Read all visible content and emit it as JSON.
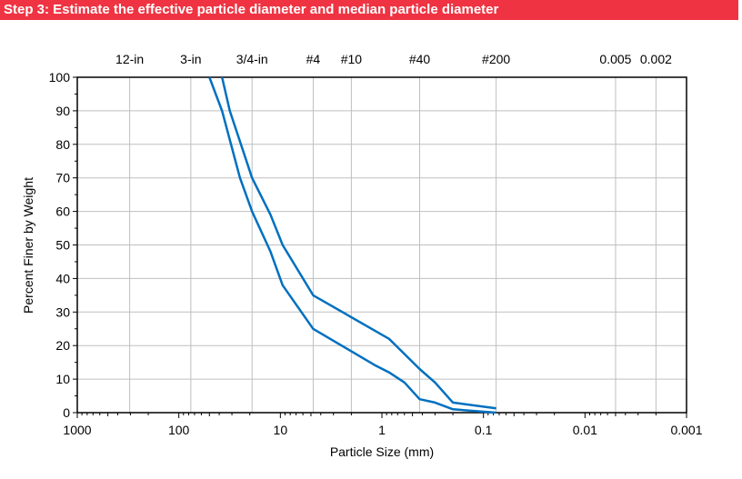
{
  "header": {
    "title": "Step 3: Estimate the effective particle diameter and median particle diameter"
  },
  "chart_data": {
    "type": "line",
    "title": "",
    "xlabel": "Particle Size (mm)",
    "ylabel": "Percent  Finer by Weight",
    "x_scale": "log",
    "x_reversed": true,
    "xlim": [
      1000,
      0.001
    ],
    "ylim": [
      0,
      100
    ],
    "grid": true,
    "x_tick_labels": [
      "1000",
      "100",
      "10",
      "1",
      "0.1",
      "0.01",
      "0.001"
    ],
    "x_ticks": [
      1000,
      100,
      10,
      1,
      0.1,
      0.01,
      0.001
    ],
    "y_ticks": [
      0,
      10,
      20,
      30,
      40,
      50,
      60,
      70,
      80,
      90,
      100
    ],
    "top_labels": [
      {
        "label": "12-in",
        "size": 304.8
      },
      {
        "label": "3-in",
        "size": 76.2
      },
      {
        "label": "3/4-in",
        "size": 19.0
      },
      {
        "label": "#4",
        "size": 4.75
      },
      {
        "label": "#10",
        "size": 2.0
      },
      {
        "label": "#40",
        "size": 0.425
      },
      {
        "label": "#200",
        "size": 0.075
      },
      {
        "label": "0.005",
        "size": 0.005
      },
      {
        "label": "0.002",
        "size": 0.002
      }
    ],
    "line_color": "#0070c0",
    "series": [
      {
        "x": [
          50,
          37.5,
          25,
          19,
          12.5,
          9.5,
          4.75,
          1.15,
          0.85,
          0.6,
          0.425,
          0.3,
          0.2,
          0.075
        ],
        "y": [
          100,
          90,
          70,
          60,
          48,
          38,
          25,
          14,
          12,
          9,
          4,
          3,
          1,
          0
        ]
      },
      {
        "x": [
          37.5,
          31.5,
          19,
          12.5,
          9.5,
          4.75,
          0.85,
          0.425,
          0.3,
          0.2,
          0.075
        ],
        "y": [
          100,
          90,
          70,
          59,
          50,
          35,
          22,
          13,
          9,
          3,
          1.3
        ]
      }
    ]
  }
}
